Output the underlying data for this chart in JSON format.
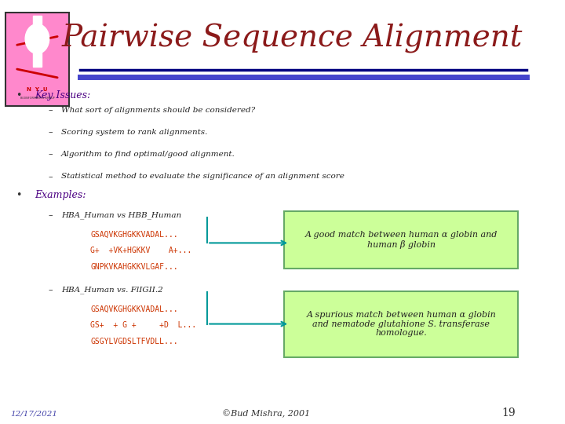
{
  "title": "Pairwise Sequence Alignment",
  "title_color": "#8B1A1A",
  "title_fontsize": 28,
  "title_font": "serif",
  "bg_color": "#FFFFFF",
  "line1_color": "#000080",
  "line2_color": "#4444CC",
  "bullet1_label": "Key Issues:",
  "bullet1_color": "#4B0082",
  "subbullets1": [
    "What sort of alignments should be considered?",
    "Scoring system to rank alignments.",
    "Algorithm to find optimal/good alignment.",
    "Statistical method to evaluate the significance of an alignment score"
  ],
  "bullet2_label": "Examples:",
  "bullet2_color": "#4B0082",
  "example1_label": "HBA_Human vs HBB_Human",
  "example1_seq": [
    "GSAQVKGHGKKVADAL...",
    "G+  +VK+HGKKV    A+...",
    "GNPKVKAHGKKVLGAF..."
  ],
  "example1_box_text": "A good match between human α globin and\nhuman β globin",
  "example1_box_color": "#CCFF99",
  "example1_box_border": "#66AA66",
  "example1_arrow_color": "#009999",
  "example2_label": "HBA_Human vs. FlIGII.2",
  "example2_seq": [
    "GSAQVKGHGKKVADAL...",
    "GS+  + G +     +D  L...",
    "GSGYLVGDSLTFVDLL..."
  ],
  "example2_box_text": "A spurious match between human α globin\nand nematode glutahione S. transferase\nhomologue.",
  "example2_box_color": "#CCFF99",
  "example2_box_border": "#66AA66",
  "example2_arrow_color": "#009999",
  "seq_color": "#CC3300",
  "footer_date": "12/17/2021",
  "footer_date_color": "#4444AA",
  "footer_copy": "©Bud Mishra, 2001",
  "footer_copy_color": "#333333",
  "footer_page": "19",
  "footer_page_color": "#333333",
  "label_color": "#333333",
  "dash_color": "#333333"
}
